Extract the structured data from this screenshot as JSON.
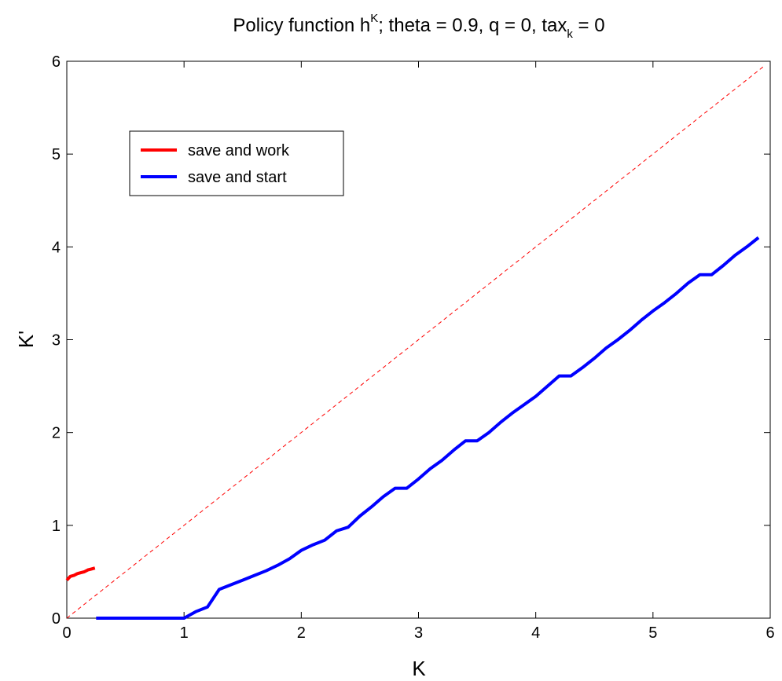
{
  "chart_data": {
    "type": "line",
    "title": {
      "main": "Policy function h",
      "sup": "K",
      "params": "theta = 0.9, q = 0, tax",
      "sub": "k",
      "suffix": " = 0"
    },
    "xlabel": "K",
    "ylabel": "K'",
    "xlim": [
      0,
      6
    ],
    "ylim": [
      0,
      6
    ],
    "xticks": [
      0,
      1,
      2,
      3,
      4,
      5,
      6
    ],
    "yticks": [
      0,
      1,
      2,
      3,
      4,
      5,
      6
    ],
    "grid": false,
    "legend_position": "upper-left",
    "series": [
      {
        "name": "save and work",
        "color": "#ff0000",
        "style": "solid",
        "x": [
          0.0,
          0.03,
          0.06,
          0.09,
          0.12,
          0.15,
          0.18,
          0.21,
          0.24
        ],
        "y": [
          0.41,
          0.45,
          0.46,
          0.48,
          0.49,
          0.5,
          0.52,
          0.53,
          0.54
        ]
      },
      {
        "name": "save and start",
        "color": "#0000ff",
        "style": "solid",
        "x": [
          0.25,
          0.5,
          0.8,
          1.0,
          1.1,
          1.2,
          1.3,
          1.4,
          1.5,
          1.6,
          1.7,
          1.8,
          1.9,
          2.0,
          2.1,
          2.2,
          2.3,
          2.4,
          2.5,
          2.6,
          2.7,
          2.8,
          2.9,
          3.0,
          3.1,
          3.2,
          3.3,
          3.4,
          3.5,
          3.6,
          3.7,
          3.8,
          3.9,
          4.0,
          4.1,
          4.2,
          4.3,
          4.4,
          4.5,
          4.6,
          4.7,
          4.8,
          4.9,
          5.0,
          5.1,
          5.2,
          5.3,
          5.4,
          5.5,
          5.6,
          5.7,
          5.8,
          5.9
        ],
        "y": [
          0.0,
          0.0,
          0.0,
          0.0,
          0.07,
          0.12,
          0.31,
          0.36,
          0.41,
          0.46,
          0.51,
          0.57,
          0.64,
          0.73,
          0.79,
          0.84,
          0.94,
          0.98,
          1.1,
          1.2,
          1.31,
          1.4,
          1.4,
          1.5,
          1.61,
          1.7,
          1.81,
          1.91,
          1.91,
          2.0,
          2.11,
          2.21,
          2.3,
          2.39,
          2.5,
          2.61,
          2.61,
          2.7,
          2.8,
          2.91,
          3.0,
          3.1,
          3.21,
          3.31,
          3.4,
          3.5,
          3.61,
          3.7,
          3.7,
          3.8,
          3.91,
          4.0,
          4.1
        ]
      },
      {
        "name": "",
        "color": "#ff0000",
        "style": "dashed",
        "x": [
          0,
          5.95
        ],
        "y": [
          0,
          5.95
        ]
      }
    ]
  }
}
